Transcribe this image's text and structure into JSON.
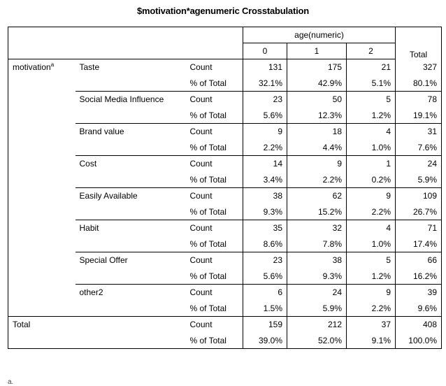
{
  "title": "$motivation*agenumeric Crosstabulation",
  "header": {
    "group_label": "age(numeric)",
    "columns": [
      "0",
      "1",
      "2"
    ],
    "total_label": "Total"
  },
  "row_label": "motivation",
  "row_label_sup": "a",
  "stat_labels": {
    "count": "Count",
    "pct": "% of Total"
  },
  "rows": [
    {
      "label": "Taste",
      "count": [
        "131",
        "175",
        "21",
        "327"
      ],
      "pct": [
        "32.1%",
        "42.9%",
        "5.1%",
        "80.1%"
      ]
    },
    {
      "label": "Social Media Influence",
      "count": [
        "23",
        "50",
        "5",
        "78"
      ],
      "pct": [
        "5.6%",
        "12.3%",
        "1.2%",
        "19.1%"
      ]
    },
    {
      "label": "Brand value",
      "count": [
        "9",
        "18",
        "4",
        "31"
      ],
      "pct": [
        "2.2%",
        "4.4%",
        "1.0%",
        "7.6%"
      ]
    },
    {
      "label": "Cost",
      "count": [
        "14",
        "9",
        "1",
        "24"
      ],
      "pct": [
        "3.4%",
        "2.2%",
        "0.2%",
        "5.9%"
      ]
    },
    {
      "label": "Easily Available",
      "count": [
        "38",
        "62",
        "9",
        "109"
      ],
      "pct": [
        "9.3%",
        "15.2%",
        "2.2%",
        "26.7%"
      ]
    },
    {
      "label": "Habit",
      "count": [
        "35",
        "32",
        "4",
        "71"
      ],
      "pct": [
        "8.6%",
        "7.8%",
        "1.0%",
        "17.4%"
      ]
    },
    {
      "label": "Special Offer",
      "count": [
        "23",
        "38",
        "5",
        "66"
      ],
      "pct": [
        "5.6%",
        "9.3%",
        "1.2%",
        "16.2%"
      ]
    },
    {
      "label": "other2",
      "count": [
        "6",
        "24",
        "9",
        "39"
      ],
      "pct": [
        "1.5%",
        "5.9%",
        "2.2%",
        "9.6%"
      ]
    }
  ],
  "total": {
    "label": "Total",
    "count": [
      "159",
      "212",
      "37",
      "408"
    ],
    "pct": [
      "39.0%",
      "52.0%",
      "9.1%",
      "100.0%"
    ]
  },
  "footnote": "a."
}
